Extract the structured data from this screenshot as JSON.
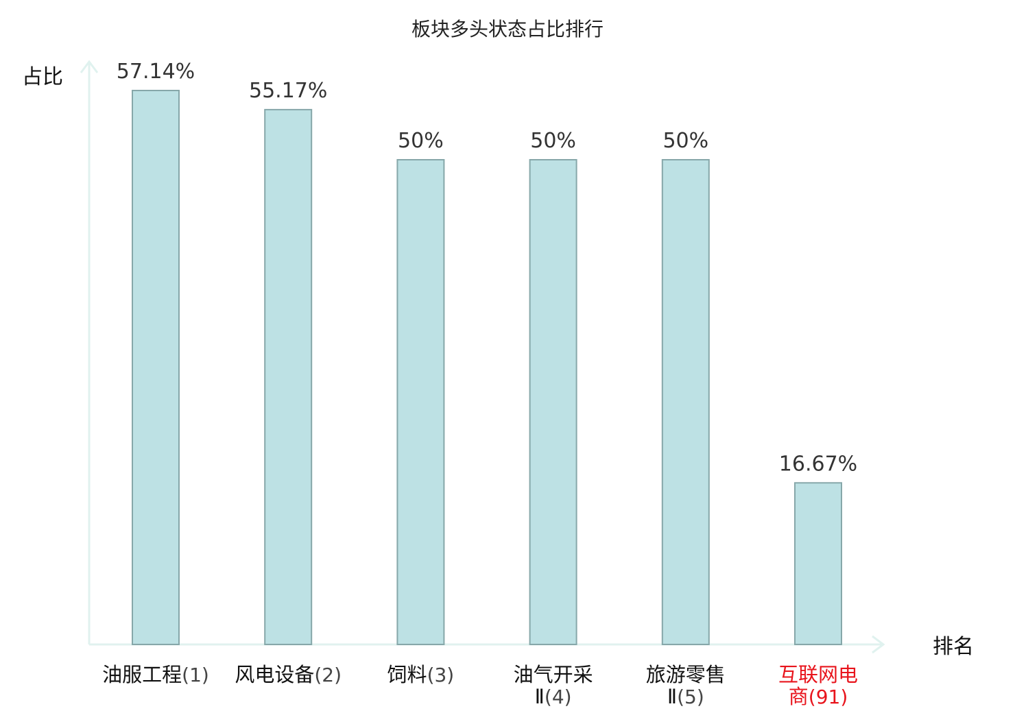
{
  "chart_data": {
    "type": "bar",
    "title": "板块多头状态占比排行",
    "ylabel": "占比",
    "xlabel": "排名",
    "categories": [
      {
        "name_lines": [
          "油服工程"
        ],
        "rank": "(1)",
        "highlight": false
      },
      {
        "name_lines": [
          "风电设备"
        ],
        "rank": "(2)",
        "highlight": false
      },
      {
        "name_lines": [
          "饲料"
        ],
        "rank": "(3)",
        "highlight": false
      },
      {
        "name_lines": [
          "油气开采",
          "Ⅱ"
        ],
        "rank": "(4)",
        "highlight": false
      },
      {
        "name_lines": [
          "旅游零售",
          "Ⅱ"
        ],
        "rank": "(5)",
        "highlight": false
      },
      {
        "name_lines": [
          "互联网电",
          "商"
        ],
        "rank": "(91)",
        "highlight": true
      }
    ],
    "values": [
      57.14,
      55.17,
      50,
      50,
      50,
      16.67
    ],
    "value_labels": [
      "57.14%",
      "55.17%",
      "50%",
      "50%",
      "50%",
      "16.67%"
    ],
    "ylim": [
      0,
      60
    ],
    "grid": false,
    "colors": {
      "bar_fill": "#bde1e4",
      "bar_stroke": "#86a7a9",
      "axis": "#e0f2ef",
      "highlight_text": "#e8141c",
      "name_text": "#111111",
      "rank_text": "#444444"
    }
  }
}
